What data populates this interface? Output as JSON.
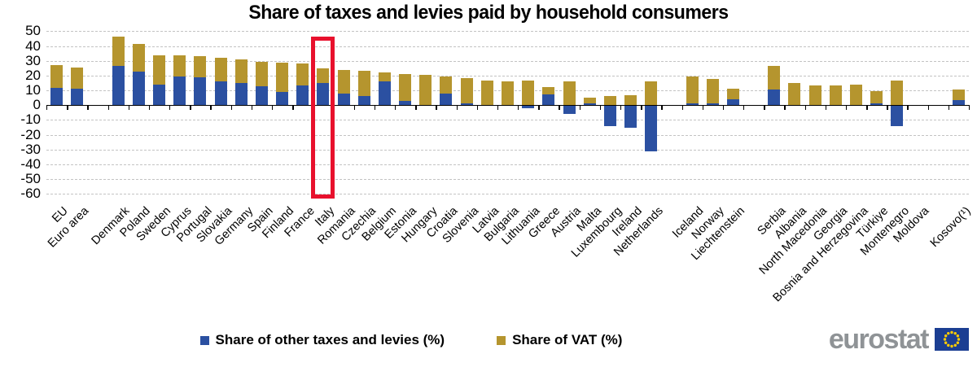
{
  "title": "Share of taxes and levies paid by household consumers",
  "chart_data": {
    "type": "bar",
    "stacked": true,
    "title": "Share of taxes and levies paid by household consumers",
    "xlabel": "",
    "ylabel": "",
    "ylim": [
      -60,
      50
    ],
    "yticks": [
      50,
      40,
      30,
      20,
      10,
      0,
      -10,
      -20,
      -30,
      -40,
      -50,
      -60
    ],
    "grid": "horizontal dashed",
    "legend_position": "bottom",
    "highlight": "Italy",
    "categories": [
      "EU",
      "Euro area",
      "",
      "Denmark",
      "Poland",
      "Sweden",
      "Cyprus",
      "Portugal",
      "Slovakia",
      "Germany",
      "Spain",
      "Finland",
      "France",
      "Italy",
      "Romania",
      "Czechia",
      "Belgium",
      "Estonia",
      "Hungary",
      "Croatia",
      "Slovenia",
      "Latvia",
      "Bulgaria",
      "Lithuania",
      "Greece",
      "Austria",
      "Malta",
      "Luxembourg",
      "Ireland",
      "Netherlands",
      "",
      "Iceland",
      "Norway",
      "Liechtenstein",
      "",
      "Serbia",
      "Albania",
      "North Macedonia",
      "Georgia",
      "Bosnia and Herzegovina",
      "Türkiye",
      "Montenegro",
      "Moldova",
      "",
      "Kosovo(¹)"
    ],
    "series": [
      {
        "name": "Share of other taxes and levies (%)",
        "color": "#2b50a1",
        "values": [
          11.5,
          11,
          null,
          26.5,
          22.5,
          14,
          19.5,
          19,
          16,
          15,
          13,
          9,
          13.5,
          15,
          8,
          6,
          16,
          3,
          0,
          8,
          1,
          0,
          0,
          -2,
          7.5,
          -6,
          1,
          -14,
          -15,
          -31,
          null,
          1,
          1,
          4,
          null,
          10.5,
          0,
          0,
          0,
          0,
          1,
          -14,
          0,
          null,
          3.5
        ]
      },
      {
        "name": "Share of VAT (%)",
        "color": "#b5952e",
        "values": [
          15.5,
          14.5,
          null,
          20,
          19,
          20,
          14,
          14,
          16,
          16,
          16.5,
          20,
          14.5,
          10,
          16,
          17.5,
          6,
          18,
          20.5,
          11.5,
          17.5,
          16.5,
          16,
          16.5,
          5,
          16,
          4,
          6,
          7,
          16,
          null,
          18.5,
          17,
          7,
          null,
          16,
          15,
          13.5,
          13.5,
          14,
          8.5,
          16.5,
          0,
          null,
          7
        ]
      }
    ]
  },
  "legend": {
    "items": [
      {
        "label": "Share of other taxes and levies (%)",
        "color": "#2b50a1"
      },
      {
        "label": "Share of VAT (%)",
        "color": "#b5952e"
      }
    ]
  },
  "branding": {
    "logo_text": "eurostat"
  },
  "colors": {
    "highlight": "#e8112d",
    "axis": "#000000",
    "grid": "#c3c3c3",
    "logo_gray": "#8f9396",
    "flag_blue": "#1b3e92",
    "flag_star": "#ffcc00"
  }
}
